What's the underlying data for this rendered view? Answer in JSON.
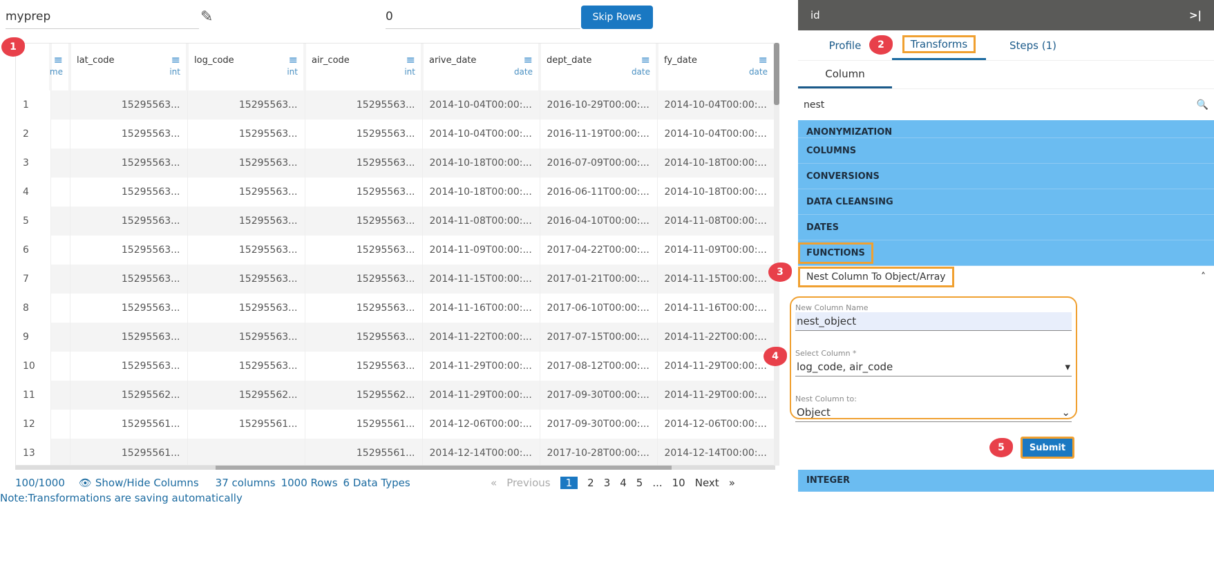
{
  "header": {
    "prep_name": "myprep",
    "skip_value": "0",
    "skip_button": "Skip Rows"
  },
  "columns": [
    {
      "name": "",
      "type": "me"
    },
    {
      "name": "lat_code",
      "type": "int"
    },
    {
      "name": "log_code",
      "type": "int"
    },
    {
      "name": "air_code",
      "type": "int"
    },
    {
      "name": "arive_date",
      "type": "date"
    },
    {
      "name": "dept_date",
      "type": "date"
    },
    {
      "name": "fy_date",
      "type": "date"
    }
  ],
  "rows": [
    [
      "1",
      "15295563...",
      "15295563...",
      "15295563...",
      "2014-10-04T00:00:...",
      "2016-10-29T00:00:...",
      "2014-10-04T00:00:..."
    ],
    [
      "2",
      "15295563...",
      "15295563...",
      "15295563...",
      "2014-10-04T00:00:...",
      "2016-11-19T00:00:...",
      "2014-10-04T00:00:..."
    ],
    [
      "3",
      "15295563...",
      "15295563...",
      "15295563...",
      "2014-10-18T00:00:...",
      "2016-07-09T00:00:...",
      "2014-10-18T00:00:..."
    ],
    [
      "4",
      "15295563...",
      "15295563...",
      "15295563...",
      "2014-10-18T00:00:...",
      "2016-06-11T00:00:...",
      "2014-10-18T00:00:..."
    ],
    [
      "5",
      "15295563...",
      "15295563...",
      "15295563...",
      "2014-11-08T00:00:...",
      "2016-04-10T00:00:...",
      "2014-11-08T00:00:..."
    ],
    [
      "6",
      "15295563...",
      "15295563...",
      "15295563...",
      "2014-11-09T00:00:...",
      "2017-04-22T00:00:...",
      "2014-11-09T00:00:..."
    ],
    [
      "7",
      "15295563...",
      "15295563...",
      "15295563...",
      "2014-11-15T00:00:...",
      "2017-01-21T00:00:...",
      "2014-11-15T00:00:..."
    ],
    [
      "8",
      "15295563...",
      "15295563...",
      "15295563...",
      "2014-11-16T00:00:...",
      "2017-06-10T00:00:...",
      "2014-11-16T00:00:..."
    ],
    [
      "9",
      "15295563...",
      "15295563...",
      "15295563...",
      "2014-11-22T00:00:...",
      "2017-07-15T00:00:...",
      "2014-11-22T00:00:..."
    ],
    [
      "10",
      "15295563...",
      "15295563...",
      "15295563...",
      "2014-11-29T00:00:...",
      "2017-08-12T00:00:...",
      "2014-11-29T00:00:..."
    ],
    [
      "11",
      "15295562...",
      "15295562...",
      "15295562...",
      "2014-11-29T00:00:...",
      "2017-09-30T00:00:...",
      "2014-11-29T00:00:..."
    ],
    [
      "12",
      "15295561...",
      "15295561...",
      "15295561...",
      "2014-12-06T00:00:...",
      "2017-09-30T00:00:...",
      "2014-12-06T00:00:..."
    ],
    [
      "13",
      "15295561...",
      "",
      "15295561...",
      "2014-12-14T00:00:...",
      "2017-10-28T00:00:...",
      "2014-12-14T00:00:..."
    ]
  ],
  "footer": {
    "count": "100/1000",
    "show_hide": "Show/Hide Columns",
    "columns": "37 columns",
    "rows": "1000 Rows",
    "types": "6 Data Types",
    "note": "Note:Transformations are saving automatically"
  },
  "pager": {
    "prev": "Previous",
    "pages": [
      "1",
      "2",
      "3",
      "4",
      "5",
      "...",
      "10"
    ],
    "next": "Next"
  },
  "panel": {
    "title": "id",
    "tabs": [
      "Profile",
      "Transforms",
      "Steps (1)"
    ],
    "subtab": "Column",
    "search": "nest",
    "categories": [
      "ANONYMIZATION",
      "COLUMNS",
      "CONVERSIONS",
      "DATA CLEANSING",
      "DATES",
      "FUNCTIONS"
    ],
    "function_item": "Nest Column To Object/Array",
    "form": {
      "name_label": "New Column Name",
      "name_value": "nest_object",
      "select_label": "Select Column *",
      "select_value": "log_code, air_code",
      "nest_label": "Nest Column to:",
      "nest_value": "Object"
    },
    "submit": "Submit",
    "last_category": "INTEGER"
  },
  "badges": [
    "1",
    "2",
    "3",
    "4",
    "5"
  ]
}
